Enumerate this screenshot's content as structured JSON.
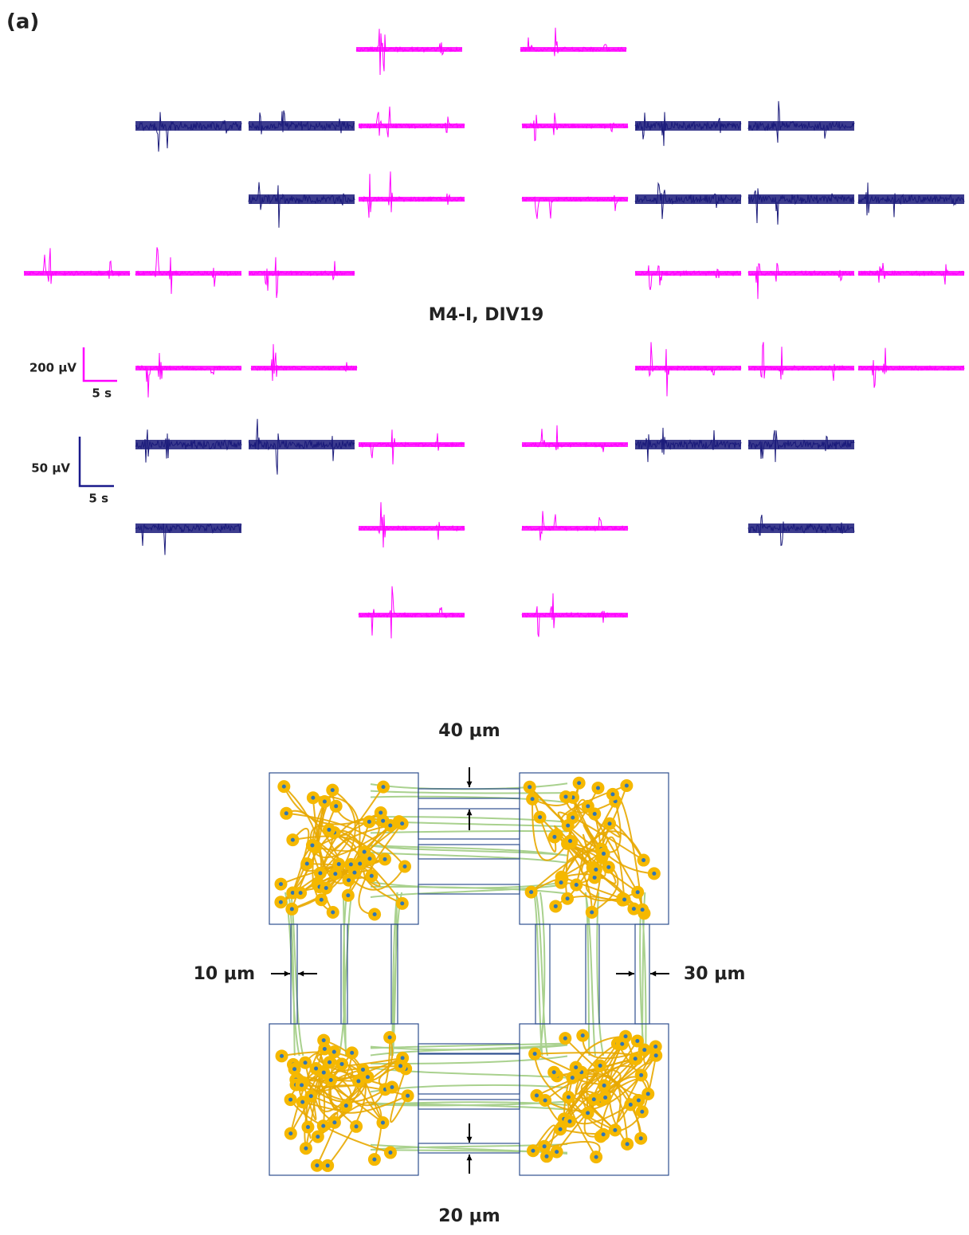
{
  "panel_label": "(a)",
  "recording": {
    "title": "M4-I, DIV19",
    "scale_bars": [
      {
        "amplitude": "200 μV",
        "time": "5 s"
      },
      {
        "amplitude": "50 μV",
        "time": "5 s"
      }
    ]
  },
  "device": {
    "top_width": "40 μm",
    "left_width": "10 μm",
    "right_width": "30 μm",
    "bottom_width": "20 μm"
  }
}
